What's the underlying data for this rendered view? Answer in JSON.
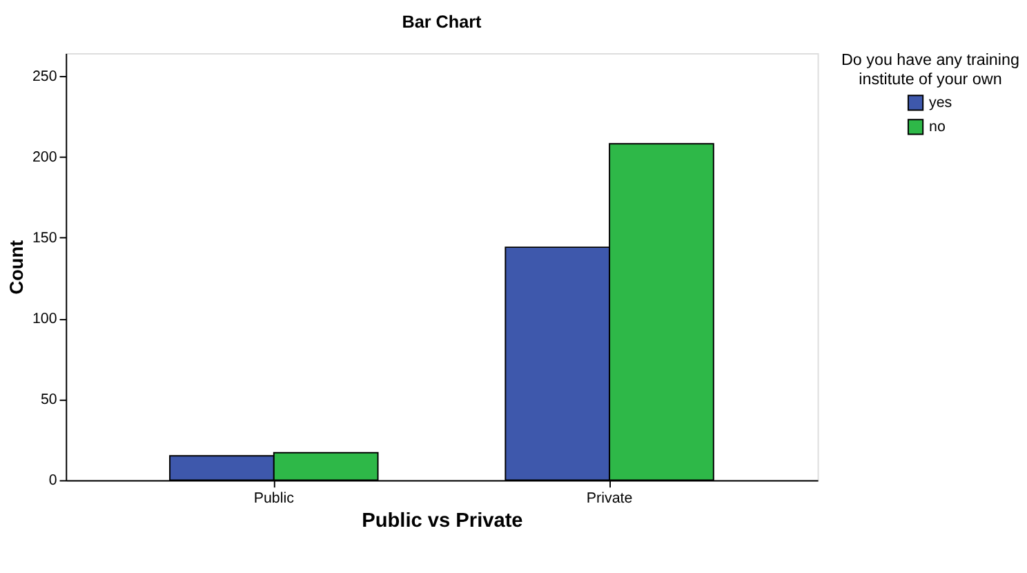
{
  "chart_data": {
    "type": "bar",
    "title": "Bar Chart",
    "xlabel": "Public vs Private",
    "ylabel": "Count",
    "legend_title": "Do you have any training institute of your own",
    "categories": [
      "Public",
      "Private"
    ],
    "series": [
      {
        "name": "yes",
        "color": "#3e58ac",
        "values": [
          15,
          144
        ]
      },
      {
        "name": "no",
        "color": "#2eb848",
        "values": [
          17,
          208
        ]
      }
    ],
    "ylim": [
      0,
      264
    ],
    "yticks": [
      0,
      50,
      100,
      150,
      200,
      250
    ],
    "grid": false,
    "legend": "top right"
  }
}
